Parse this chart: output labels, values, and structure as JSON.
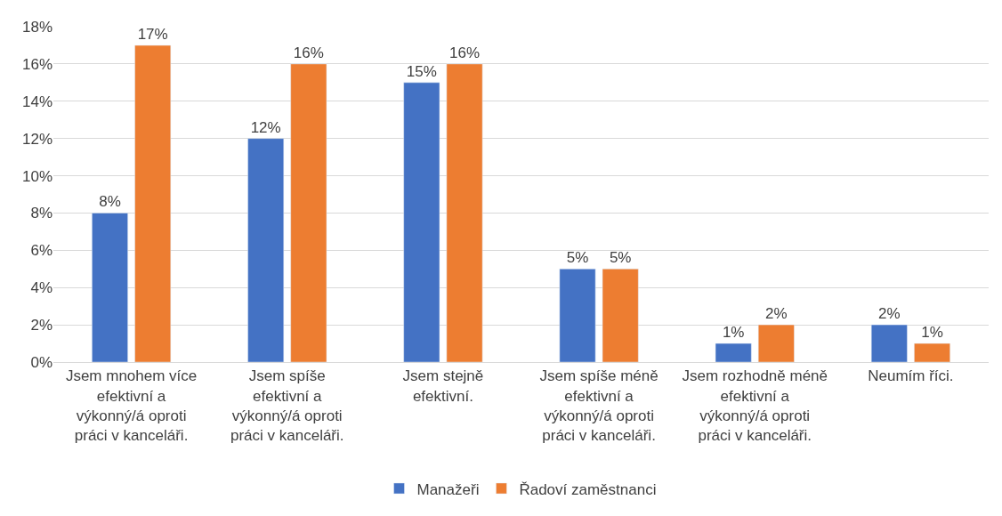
{
  "chart_data": {
    "type": "bar",
    "categories": [
      "Jsem mnohem více efektivní a výkonný/á oproti práci v kanceláři.",
      "Jsem spíše efektivní a výkonný/á oproti práci v kanceláři.",
      "Jsem stejně efektivní.",
      "Jsem spíše méně efektivní a výkonný/á oproti práci v kanceláři.",
      "Jsem rozhodně méně efektivní a výkonný/á oproti práci v kanceláři.",
      "Neumím říci."
    ],
    "series": [
      {
        "name": "Manažeři",
        "color": "#4472c4",
        "values": [
          8,
          12,
          15,
          5,
          1,
          2
        ],
        "value_labels": [
          "8%",
          "12%",
          "15%",
          "5%",
          "1%",
          "2%"
        ]
      },
      {
        "name": "Řadoví zaměstnanci",
        "color": "#ed7d31",
        "values": [
          17,
          16,
          16,
          5,
          2,
          1
        ],
        "value_labels": [
          "17%",
          "16%",
          "16%",
          "5%",
          "2%",
          "1%"
        ]
      }
    ],
    "ylim": [
      0,
      18
    ],
    "yticks": [
      {
        "value": 0,
        "label": "0%"
      },
      {
        "value": 2,
        "label": "2%"
      },
      {
        "value": 4,
        "label": "4%"
      },
      {
        "value": 6,
        "label": "6%"
      },
      {
        "value": 8,
        "label": "8%"
      },
      {
        "value": 10,
        "label": "10%"
      },
      {
        "value": 12,
        "label": "12%"
      },
      {
        "value": 14,
        "label": "14%"
      },
      {
        "value": 16,
        "label": "16%"
      },
      {
        "value": 18,
        "label": "18%"
      }
    ],
    "grid": "y",
    "legend": "bottom"
  }
}
